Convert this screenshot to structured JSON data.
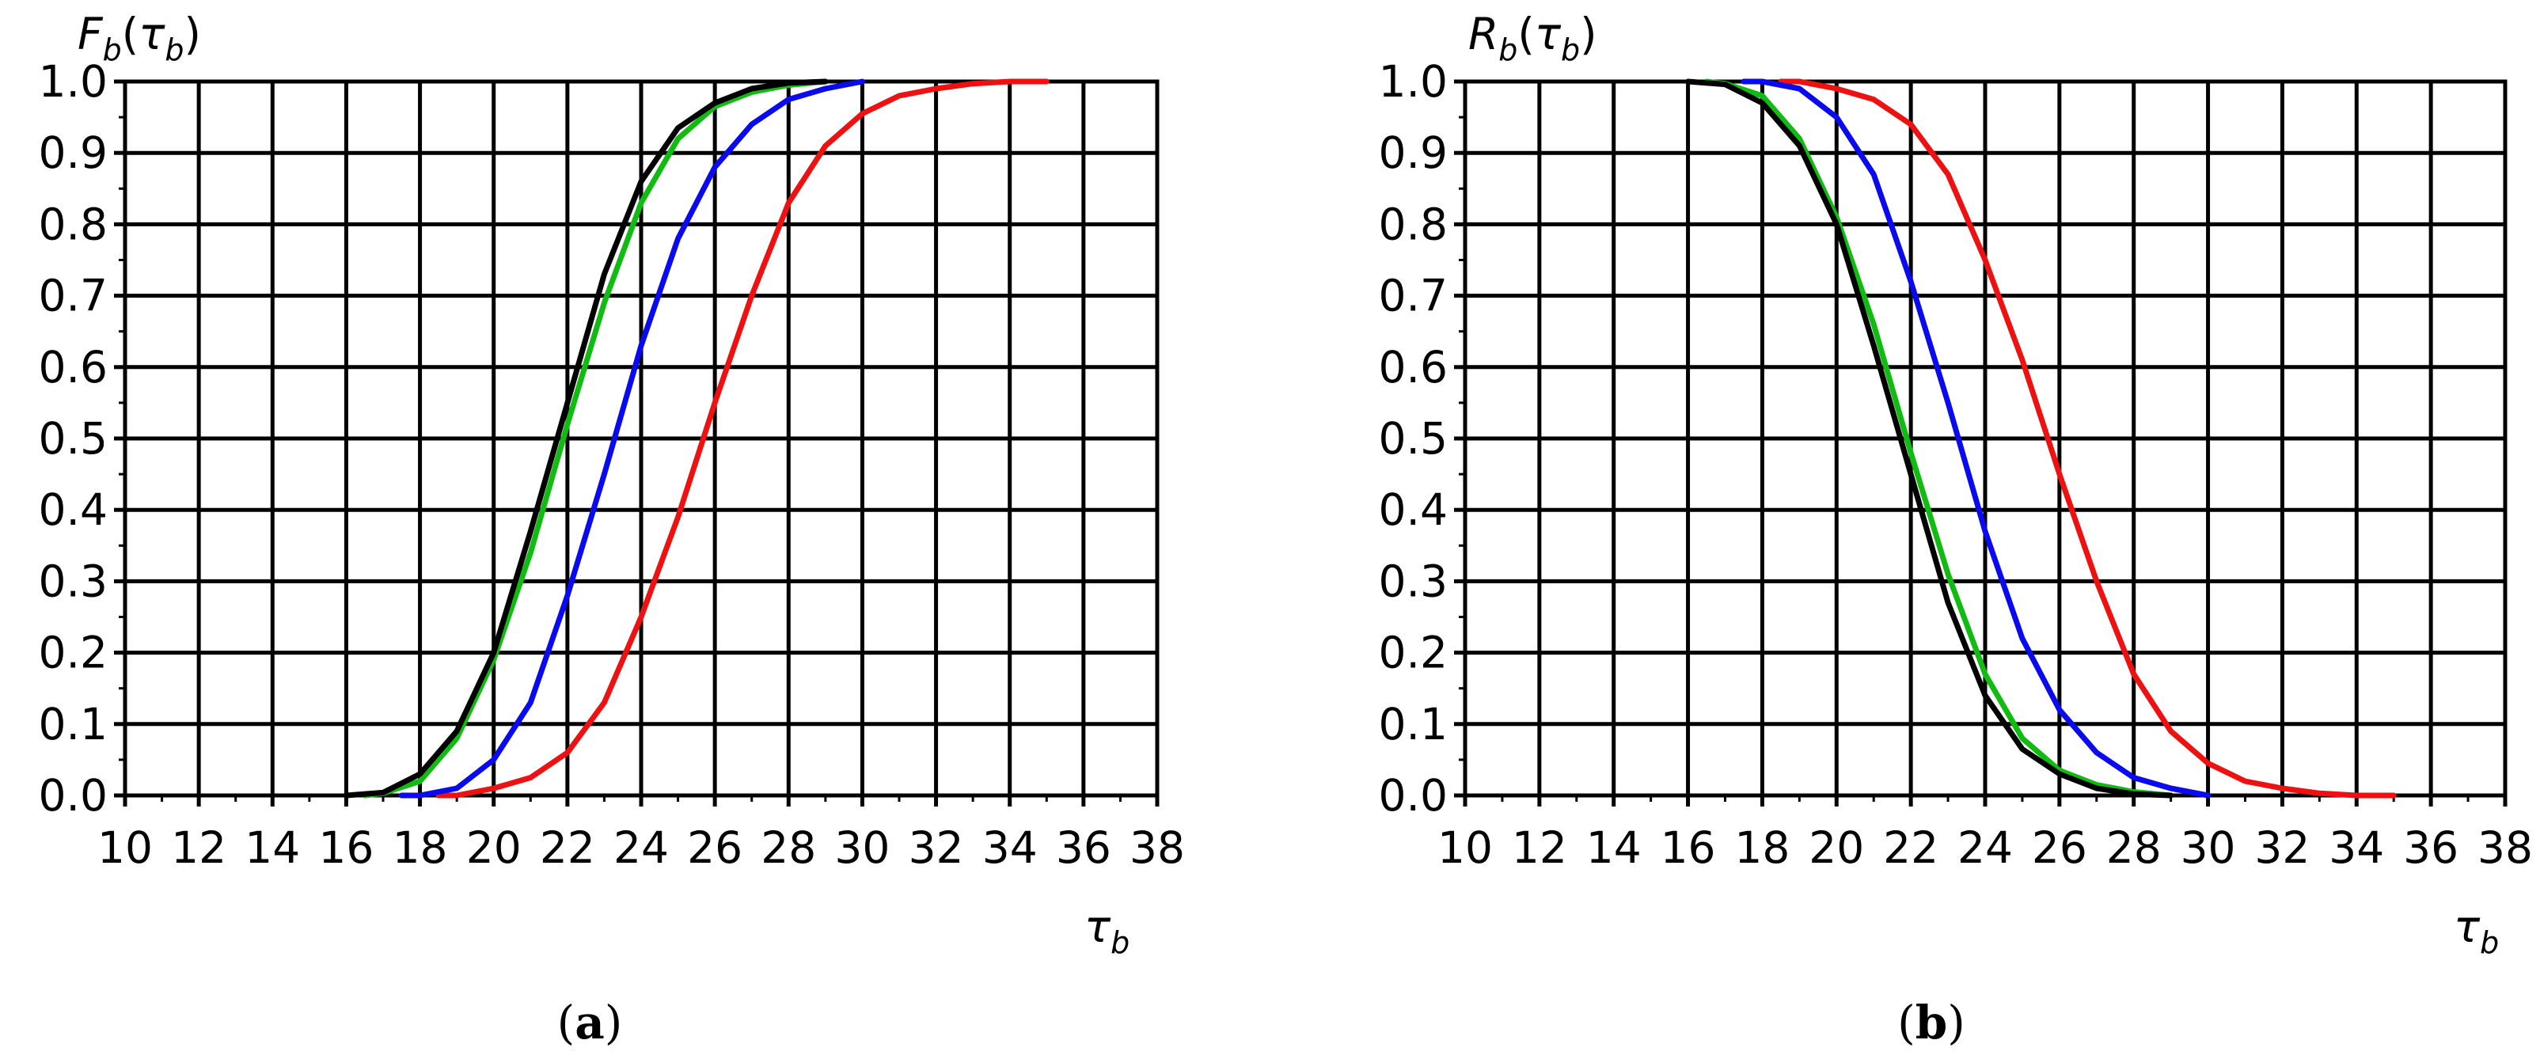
{
  "colors": {
    "red": "#ee1111",
    "blue": "#0a0aee",
    "green": "#11bb11",
    "black": "#000000"
  },
  "chart_data": [
    {
      "type": "line",
      "caption": "a",
      "ylabel": {
        "main": "F",
        "sub1": "b",
        "open": "(",
        "tau": "τ",
        "sub2": "b",
        "close": ")"
      },
      "xlabel": {
        "tau": "τ",
        "sub": "b"
      },
      "xlim": [
        10,
        38
      ],
      "ylim": [
        0,
        1
      ],
      "xticks": [
        "10",
        "12",
        "14",
        "16",
        "18",
        "20",
        "22",
        "24",
        "26",
        "28",
        "30",
        "32",
        "34",
        "36",
        "38"
      ],
      "yticks": [
        "0.0",
        "0.1",
        "0.2",
        "0.3",
        "0.4",
        "0.5",
        "0.6",
        "0.7",
        "0.8",
        "0.9",
        "1.0"
      ],
      "grid": true,
      "series": [
        {
          "color": "#ee1111",
          "x": [
            18.5,
            19,
            20,
            21,
            22,
            23,
            24,
            25,
            26,
            27,
            28,
            29,
            30,
            31,
            32,
            33,
            34,
            35
          ],
          "y": [
            0,
            0,
            0.01,
            0.025,
            0.06,
            0.13,
            0.25,
            0.39,
            0.55,
            0.7,
            0.83,
            0.91,
            0.955,
            0.98,
            0.99,
            0.997,
            1.0,
            1.0
          ]
        },
        {
          "color": "#0a0aee",
          "x": [
            17.5,
            18,
            19,
            20,
            21,
            22,
            23,
            24,
            25,
            26,
            27,
            28,
            29,
            30
          ],
          "y": [
            0,
            0,
            0.01,
            0.05,
            0.13,
            0.28,
            0.45,
            0.63,
            0.78,
            0.88,
            0.94,
            0.975,
            0.99,
            1.0
          ]
        },
        {
          "color": "#11bb11",
          "x": [
            16.5,
            17,
            18,
            19,
            20,
            21,
            22,
            23,
            24,
            25,
            26,
            27,
            28,
            29
          ],
          "y": [
            0,
            0.003,
            0.02,
            0.08,
            0.19,
            0.34,
            0.52,
            0.69,
            0.83,
            0.92,
            0.965,
            0.985,
            0.995,
            1.0
          ]
        },
        {
          "color": "#000000",
          "x": [
            16,
            17,
            18,
            19,
            20,
            21,
            22,
            23,
            24,
            25,
            26,
            27,
            28,
            29
          ],
          "y": [
            0,
            0.004,
            0.03,
            0.09,
            0.2,
            0.37,
            0.55,
            0.73,
            0.86,
            0.935,
            0.97,
            0.99,
            0.998,
            1.0
          ]
        }
      ]
    },
    {
      "type": "line",
      "caption": "b",
      "ylabel": {
        "main": "R",
        "sub1": "b",
        "open": "(",
        "tau": "τ",
        "sub2": "b",
        "close": ")"
      },
      "xlabel": {
        "tau": "τ",
        "sub": "b"
      },
      "xlim": [
        10,
        38
      ],
      "ylim": [
        0,
        1
      ],
      "xticks": [
        "10",
        "12",
        "14",
        "16",
        "18",
        "20",
        "22",
        "24",
        "26",
        "28",
        "30",
        "32",
        "34",
        "36",
        "38"
      ],
      "yticks": [
        "0.0",
        "0.1",
        "0.2",
        "0.3",
        "0.4",
        "0.5",
        "0.6",
        "0.7",
        "0.8",
        "0.9",
        "1.0"
      ],
      "grid": true,
      "series": [
        {
          "color": "#ee1111",
          "x": [
            18.5,
            19,
            20,
            21,
            22,
            23,
            24,
            25,
            26,
            27,
            28,
            29,
            30,
            31,
            32,
            33,
            34,
            35
          ],
          "y": [
            1,
            1,
            0.99,
            0.975,
            0.94,
            0.87,
            0.75,
            0.61,
            0.45,
            0.3,
            0.17,
            0.09,
            0.045,
            0.02,
            0.01,
            0.003,
            0.0,
            0.0
          ]
        },
        {
          "color": "#0a0aee",
          "x": [
            17.5,
            18,
            19,
            20,
            21,
            22,
            23,
            24,
            25,
            26,
            27,
            28,
            29,
            30
          ],
          "y": [
            1,
            1,
            0.99,
            0.95,
            0.87,
            0.72,
            0.55,
            0.37,
            0.22,
            0.12,
            0.06,
            0.025,
            0.01,
            0.0
          ]
        },
        {
          "color": "#11bb11",
          "x": [
            16.5,
            17,
            18,
            19,
            20,
            21,
            22,
            23,
            24,
            25,
            26,
            27,
            28,
            29
          ],
          "y": [
            1,
            0.997,
            0.98,
            0.92,
            0.81,
            0.66,
            0.48,
            0.31,
            0.17,
            0.08,
            0.035,
            0.015,
            0.005,
            0.0
          ]
        },
        {
          "color": "#000000",
          "x": [
            16,
            17,
            18,
            19,
            20,
            21,
            22,
            23,
            24,
            25,
            26,
            27,
            28,
            29
          ],
          "y": [
            1,
            0.996,
            0.97,
            0.91,
            0.8,
            0.63,
            0.45,
            0.27,
            0.14,
            0.065,
            0.03,
            0.01,
            0.002,
            0.0
          ]
        }
      ]
    }
  ]
}
